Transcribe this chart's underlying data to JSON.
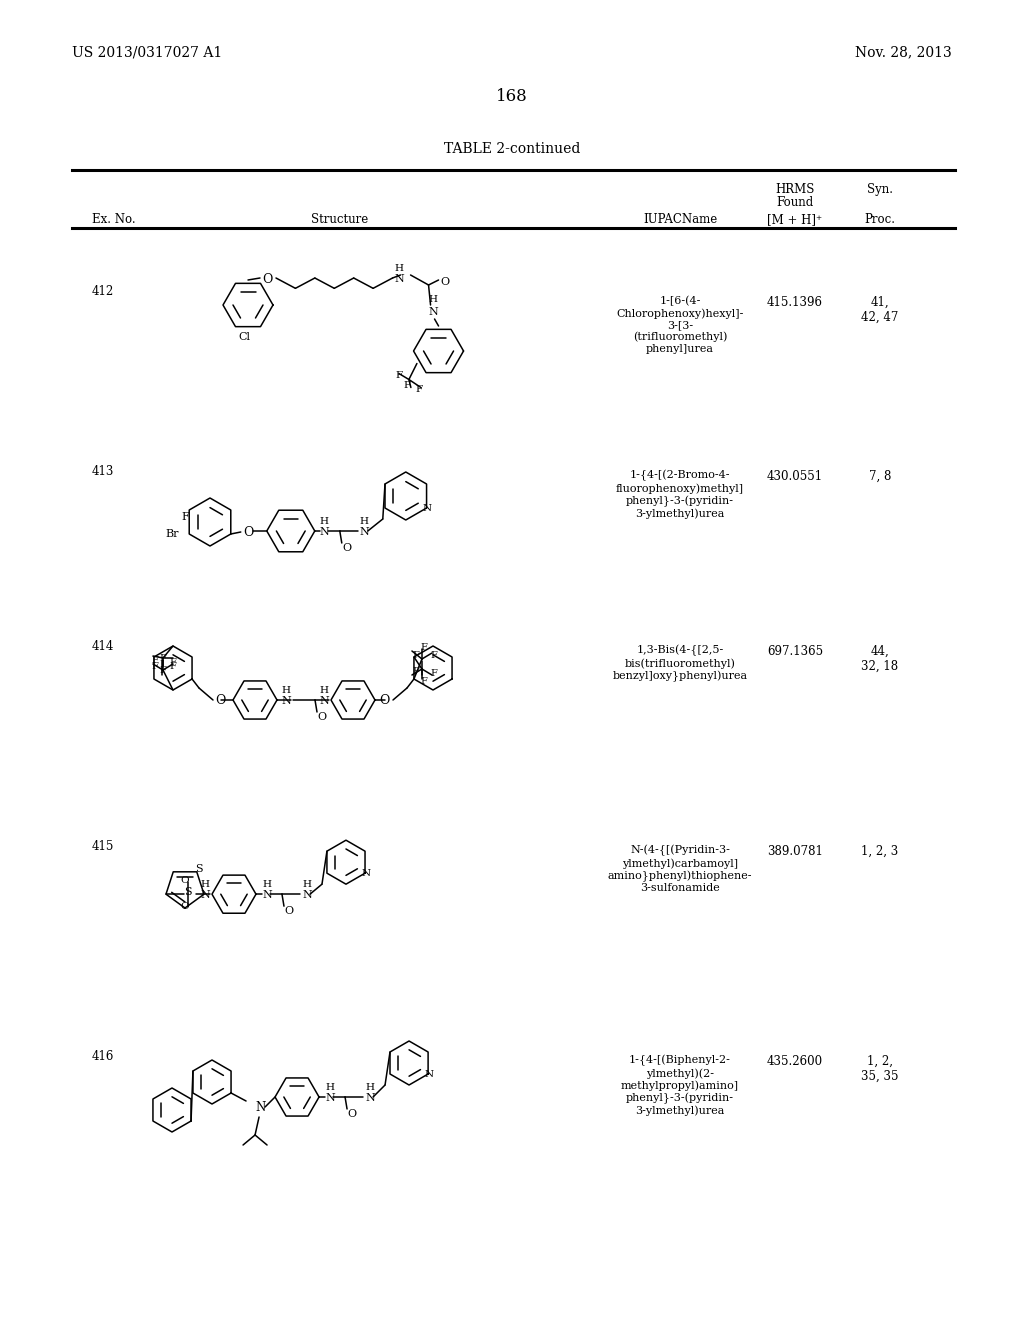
{
  "page_number": "168",
  "patent_number": "US 2013/0317027 A1",
  "date": "Nov. 28, 2013",
  "table_title": "TABLE 2-continued",
  "bg_color": "#ffffff",
  "text_color": "#000000",
  "rows": [
    {
      "ex_no": "412",
      "iupac": "1-[6-(4-\nChlorophenoxy)hexyl]-\n3-[3-\n(trifluoromethyl)\nphenyl]urea",
      "hrms": "415.1396",
      "syn": "41,\n42, 47"
    },
    {
      "ex_no": "413",
      "iupac": "1-{4-[(2-Bromo-4-\nfluorophenoxy)methyl]\nphenyl}-3-(pyridin-\n3-ylmethyl)urea",
      "hrms": "430.0551",
      "syn": "7, 8"
    },
    {
      "ex_no": "414",
      "iupac": "1,3-Bis(4-{[2,5-\nbis(trifluoromethyl)\nbenzyl]oxy}phenyl)urea",
      "hrms": "697.1365",
      "syn": "44,\n32, 18"
    },
    {
      "ex_no": "415",
      "iupac": "N-(4-{[(Pyridin-3-\nylmethyl)carbamoyl]\namino}phenyl)thiophene-\n3-sulfonamide",
      "hrms": "389.0781",
      "syn": "1, 2, 3"
    },
    {
      "ex_no": "416",
      "iupac": "1-{4-[(Biphenyl-2-\nylmethyl)(2-\nmethylpropyl)amino]\nphenyl}-3-(pyridin-\n3-ylmethyl)urea",
      "hrms": "435.2600",
      "syn": "1, 2,\n35, 35"
    }
  ]
}
